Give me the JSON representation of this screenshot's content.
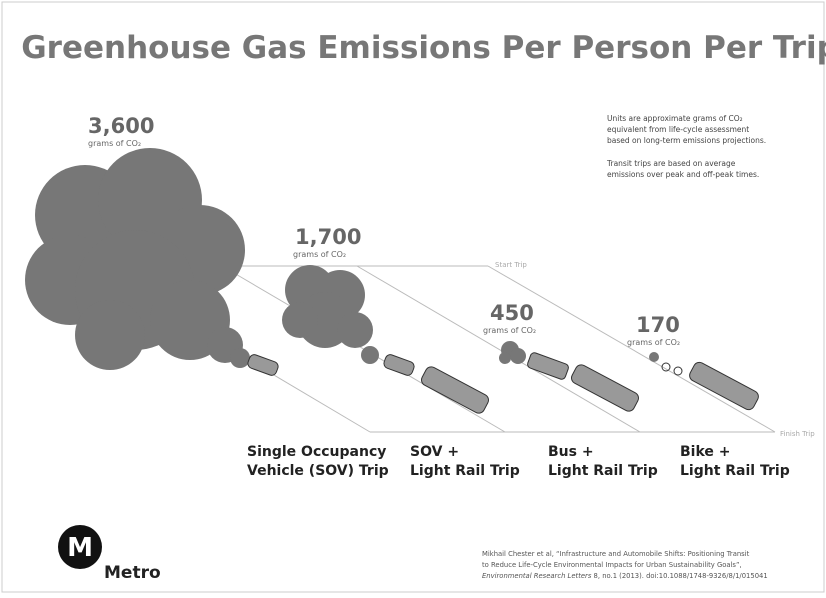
{
  "title": "Greenhouse Gas Emissions Per Person Per Trip",
  "notes": [
    "Units are approximate grams of CO₂",
    "equivalent from life-cycle assessment",
    "based on long-term emissions projections.",
    "Transit trips are based on average",
    "emissions over peak and off-peak times."
  ],
  "trips": [
    {
      "value": "3,600",
      "unit": "grams of CO₂",
      "label": [
        "Single Occupancy",
        "Vehicle (SOV) Trip"
      ]
    },
    {
      "value": "1,700",
      "unit": "grams of CO₂",
      "label": [
        "SOV +",
        "Light Rail Trip"
      ]
    },
    {
      "value": "450",
      "unit": "grams of CO₂",
      "label": [
        "Bus +",
        "Light Rail Trip"
      ]
    },
    {
      "value": "170",
      "unit": "grams of CO₂",
      "label": [
        "Bike +",
        "Light Rail Trip"
      ]
    }
  ],
  "start_label": "Start Trip",
  "finish_label": "Finish Trip",
  "logo": {
    "letter": "M",
    "name": "Metro"
  },
  "citation": [
    "Mikhail Chester et al, “Infrastructure and Automobile Shifts: Positioning Transit",
    "to Reduce Life-Cycle Environmental Impacts for Urban Sustainability Goals”,",
    "Environmental Research Letters",
    "8, no.1 (2013). doi:10.1088/1748-9326/8/1/015041"
  ]
}
